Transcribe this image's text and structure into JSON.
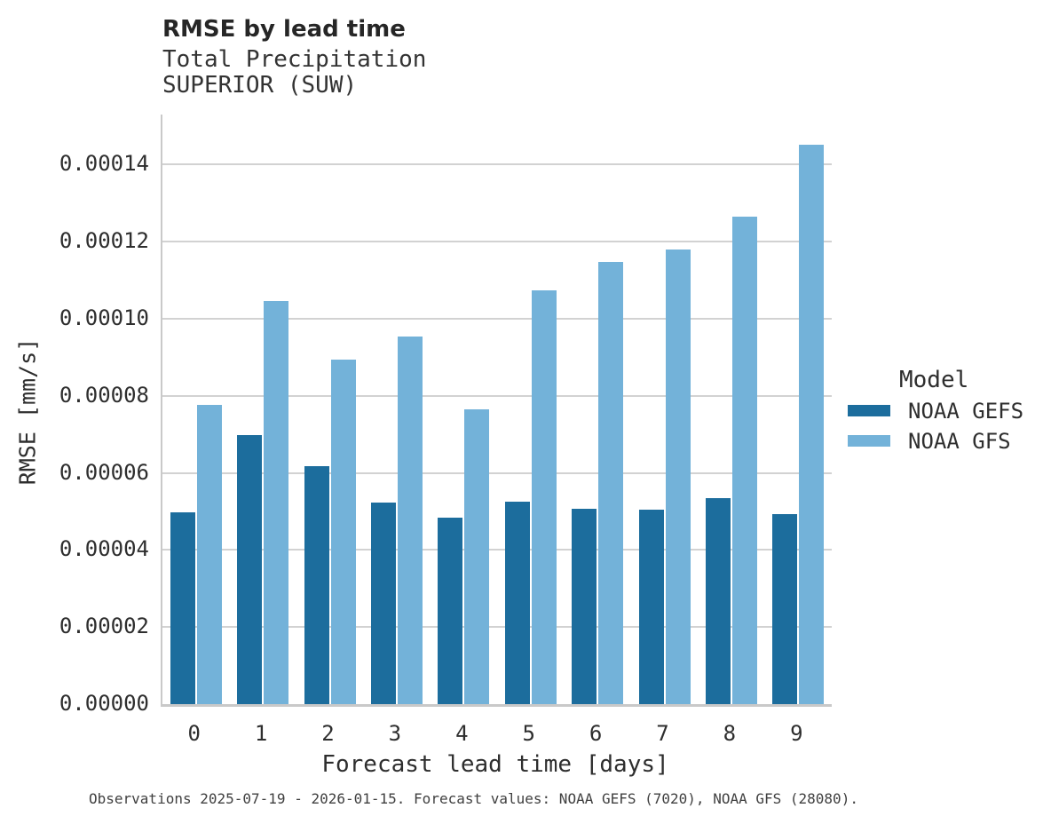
{
  "header": {
    "title": "RMSE by lead time",
    "subtitle_line1": "Total Precipitation",
    "subtitle_line2": "SUPERIOR (SUW)"
  },
  "caption": "Observations 2025-07-19 - 2026-01-15. Forecast values: NOAA GEFS (7020), NOAA GFS (28080).",
  "legend": {
    "title": "Model",
    "entries": [
      {
        "label": "NOAA GEFS",
        "color": "#1c6d9d"
      },
      {
        "label": "NOAA GFS",
        "color": "#73b2d9"
      }
    ]
  },
  "colors": {
    "gefs": "#1c6d9d",
    "gfs": "#73b2d9",
    "grid": "#d2d2d2",
    "spine": "#c9c9c9",
    "text": "#2e2e2e",
    "caption_text": "#404040"
  },
  "chart_data": {
    "type": "bar",
    "title": "RMSE by lead time",
    "subtitle": [
      "Total Precipitation",
      "SUPERIOR (SUW)"
    ],
    "xlabel": "Forecast lead time [days]",
    "ylabel": "RMSE [mm/s]",
    "categories": [
      "0",
      "1",
      "2",
      "3",
      "4",
      "5",
      "6",
      "7",
      "8",
      "9"
    ],
    "series": [
      {
        "name": "NOAA GEFS",
        "color": "#1c6d9d",
        "values": [
          4.97e-05,
          6.98e-05,
          6.18e-05,
          5.23e-05,
          4.83e-05,
          5.25e-05,
          5.08e-05,
          5.05e-05,
          5.34e-05,
          4.92e-05
        ]
      },
      {
        "name": "NOAA GFS",
        "color": "#73b2d9",
        "values": [
          7.76e-05,
          0.0001045,
          8.93e-05,
          9.55e-05,
          7.66e-05,
          0.0001073,
          0.0001147,
          0.000118,
          0.0001266,
          0.0001451
        ]
      }
    ],
    "yticks": [
      0.0,
      2e-05,
      4e-05,
      6e-05,
      8e-05,
      0.0001,
      0.00012,
      0.00014
    ],
    "ytick_labels": [
      "0.00000",
      "0.00002",
      "0.00004",
      "0.00006",
      "0.00008",
      "0.00010",
      "0.00012",
      "0.00014"
    ],
    "ylim": [
      0,
      0.000153
    ],
    "grid": "horizontal",
    "legend_position": "center-right",
    "legend_title": "Model"
  }
}
